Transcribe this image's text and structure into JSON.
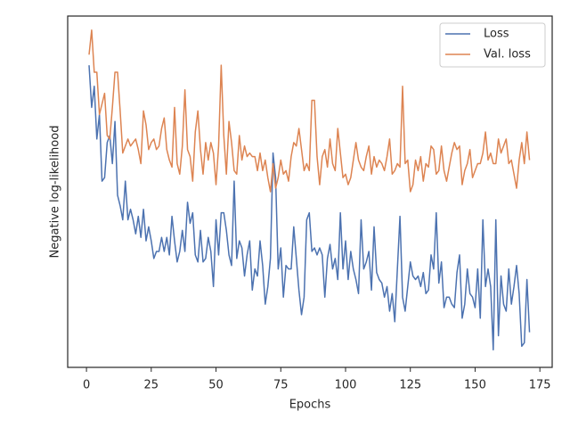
{
  "chart_data": {
    "type": "line",
    "xlabel": "Epochs",
    "ylabel": "Negative log-likelihood",
    "xlim": [
      -7.25,
      179.75
    ],
    "ylim": [
      0,
      100
    ],
    "xticks": [
      0,
      25,
      50,
      75,
      100,
      125,
      150,
      175
    ],
    "legend": "upper right",
    "x": [
      1,
      2,
      3,
      4,
      5,
      6,
      7,
      8,
      9,
      10,
      11,
      12,
      13,
      14,
      15,
      16,
      17,
      18,
      19,
      20,
      21,
      22,
      23,
      24,
      25,
      26,
      27,
      28,
      29,
      30,
      31,
      32,
      33,
      34,
      35,
      36,
      37,
      38,
      39,
      40,
      41,
      42,
      43,
      44,
      45,
      46,
      47,
      48,
      49,
      50,
      51,
      52,
      53,
      54,
      55,
      56,
      57,
      58,
      59,
      60,
      61,
      62,
      63,
      64,
      65,
      66,
      67,
      68,
      69,
      70,
      71,
      72,
      73,
      74,
      75,
      76,
      77,
      78,
      79,
      80,
      81,
      82,
      83,
      84,
      85,
      86,
      87,
      88,
      89,
      90,
      91,
      92,
      93,
      94,
      95,
      96,
      97,
      98,
      99,
      100,
      101,
      102,
      103,
      104,
      105,
      106,
      107,
      108,
      109,
      110,
      111,
      112,
      113,
      114,
      115,
      116,
      117,
      118,
      119,
      120,
      121,
      122,
      123,
      124,
      125,
      126,
      127,
      128,
      129,
      130,
      131,
      132,
      133,
      134,
      135,
      136,
      137,
      138,
      139,
      140,
      141,
      142,
      143,
      144,
      145,
      146,
      147,
      148,
      149,
      150,
      151,
      152,
      153,
      154,
      155,
      156,
      157,
      158,
      159,
      160,
      161,
      162,
      163,
      164,
      165,
      166,
      167,
      168,
      169,
      170,
      171
    ],
    "series": [
      {
        "name": "Loss",
        "color": "#4c72b0",
        "values": [
          86,
          74,
          80,
          65,
          72,
          53,
          54,
          64,
          66,
          58,
          70,
          49,
          46,
          42,
          53,
          42,
          45,
          42,
          38,
          43,
          37,
          45,
          36,
          40,
          36,
          31,
          33,
          33,
          37,
          33,
          37,
          32,
          43,
          36,
          30,
          33,
          39,
          33,
          47,
          41,
          44,
          32,
          30,
          39,
          30,
          31,
          37,
          33,
          23,
          42,
          32,
          44,
          44,
          39,
          32,
          29,
          53,
          31,
          36,
          34,
          26,
          32,
          36,
          22,
          28,
          26,
          36,
          29,
          18,
          23,
          31,
          61,
          54,
          28,
          34,
          20,
          29,
          28,
          28,
          40,
          31,
          22,
          15,
          20,
          42,
          44,
          33,
          34,
          32,
          34,
          32,
          20,
          31,
          35,
          28,
          31,
          25,
          44,
          28,
          36,
          25,
          33,
          28,
          25,
          21,
          42,
          28,
          30,
          33,
          22,
          40,
          27,
          25,
          24,
          20,
          23,
          16,
          21,
          13,
          28,
          43,
          20,
          16,
          23,
          30,
          26,
          25,
          26,
          23,
          27,
          21,
          22,
          32,
          28,
          44,
          24,
          30,
          17,
          20,
          20,
          18,
          17,
          27,
          32,
          14,
          18,
          28,
          21,
          20,
          17,
          28,
          14,
          42,
          23,
          28,
          23,
          5,
          42,
          9,
          26,
          18,
          16,
          28,
          18,
          23,
          29,
          21,
          6,
          7,
          25,
          10
        ]
      },
      {
        "name": "Val. loss",
        "color": "#dd8452",
        "values": [
          89,
          96,
          84,
          84,
          72,
          75,
          78,
          66,
          65,
          74,
          84,
          84,
          73,
          61,
          63,
          65,
          63,
          64,
          65,
          62,
          58,
          73,
          69,
          62,
          64,
          65,
          62,
          63,
          68,
          71,
          62,
          59,
          57,
          74,
          58,
          55,
          63,
          79,
          62,
          60,
          53,
          67,
          73,
          62,
          55,
          64,
          59,
          64,
          61,
          52,
          63,
          86,
          66,
          55,
          70,
          64,
          56,
          55,
          66,
          59,
          63,
          60,
          61,
          60,
          60,
          56,
          61,
          56,
          59,
          54,
          50,
          58,
          51,
          54,
          59,
          55,
          56,
          53,
          60,
          64,
          63,
          68,
          62,
          56,
          58,
          56,
          76,
          76,
          60,
          52,
          60,
          62,
          57,
          65,
          58,
          56,
          68,
          61,
          54,
          55,
          52,
          54,
          59,
          64,
          59,
          57,
          56,
          60,
          63,
          55,
          60,
          57,
          59,
          58,
          56,
          60,
          65,
          55,
          56,
          58,
          57,
          80,
          58,
          59,
          50,
          52,
          59,
          56,
          60,
          53,
          58,
          57,
          63,
          62,
          55,
          56,
          63,
          56,
          53,
          57,
          61,
          64,
          62,
          63,
          52,
          56,
          58,
          62,
          54,
          56,
          58,
          58,
          61,
          67,
          59,
          61,
          58,
          58,
          65,
          61,
          63,
          65,
          58,
          59,
          55,
          51,
          59,
          64,
          58,
          67,
          59
        ]
      }
    ]
  }
}
